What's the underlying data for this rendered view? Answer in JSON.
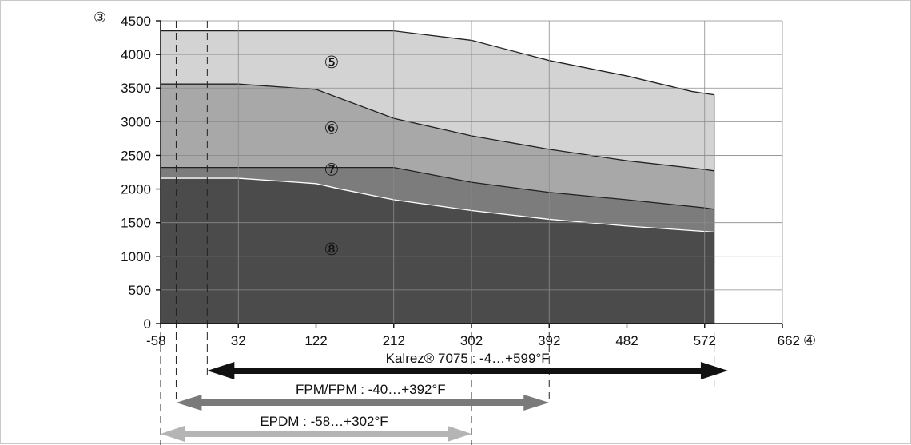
{
  "chart_data": {
    "type": "area",
    "title": "",
    "y_axis_marker": "③",
    "x_axis_marker": "④",
    "xlim": [
      -58,
      662
    ],
    "ylim": [
      0,
      4500
    ],
    "x_ticks": [
      -58,
      32,
      122,
      212,
      302,
      392,
      482,
      572,
      662
    ],
    "y_ticks": [
      0,
      500,
      1000,
      1500,
      2000,
      2500,
      3000,
      3500,
      4000,
      4500
    ],
    "x_tick_labels": [
      "-58",
      "32",
      "122",
      "212",
      "302",
      "392",
      "482",
      "572",
      "662"
    ],
    "y_tick_labels": [
      "0",
      "500",
      "1000",
      "1500",
      "2000",
      "2500",
      "3000",
      "3500",
      "4000",
      "4500"
    ],
    "grid": true,
    "regions": [
      {
        "label": "⑤",
        "label_at": [
          140,
          3800
        ],
        "color": "#d3d3d3",
        "stroke": "#222222",
        "points": [
          [
            -58,
            4350
          ],
          [
            212,
            4350
          ],
          [
            302,
            4210
          ],
          [
            392,
            3910
          ],
          [
            482,
            3680
          ],
          [
            557,
            3450
          ],
          [
            583,
            3400
          ]
        ]
      },
      {
        "label": "⑥",
        "label_at": [
          140,
          2820
        ],
        "color": "#a8a8a8",
        "stroke": "#222222",
        "points": [
          [
            -58,
            3560
          ],
          [
            32,
            3560
          ],
          [
            122,
            3480
          ],
          [
            212,
            3050
          ],
          [
            302,
            2790
          ],
          [
            392,
            2590
          ],
          [
            482,
            2420
          ],
          [
            572,
            2290
          ],
          [
            583,
            2270
          ]
        ]
      },
      {
        "label": "⑦",
        "label_at": [
          140,
          2200
        ],
        "color": "#7c7c7c",
        "stroke": "#222222",
        "points": [
          [
            -58,
            2320
          ],
          [
            212,
            2320
          ],
          [
            302,
            2100
          ],
          [
            392,
            1950
          ],
          [
            482,
            1840
          ],
          [
            572,
            1720
          ],
          [
            583,
            1700
          ]
        ]
      },
      {
        "label": "⑧",
        "label_at": [
          140,
          1020
        ],
        "color": "#4b4b4b",
        "stroke": "#ffffff",
        "points": [
          [
            -58,
            2160
          ],
          [
            32,
            2160
          ],
          [
            122,
            2080
          ],
          [
            150,
            2000
          ],
          [
            212,
            1840
          ],
          [
            302,
            1680
          ],
          [
            392,
            1550
          ],
          [
            482,
            1450
          ],
          [
            572,
            1370
          ],
          [
            583,
            1360
          ]
        ]
      }
    ],
    "dashed_verticals": [
      -58,
      -40,
      -4,
      392,
      302,
      583
    ],
    "ranges": [
      {
        "label": "Kalrez® 7075 : -4…+599°F",
        "from": -4,
        "to": 599,
        "color": "#111111"
      },
      {
        "label": "FPM/FPM : -40…+392°F",
        "from": -40,
        "to": 392,
        "color": "#7a7a7a"
      },
      {
        "label": "EPDM : -58…+302°F",
        "from": -58,
        "to": 302,
        "color": "#b4b4b4"
      }
    ]
  }
}
